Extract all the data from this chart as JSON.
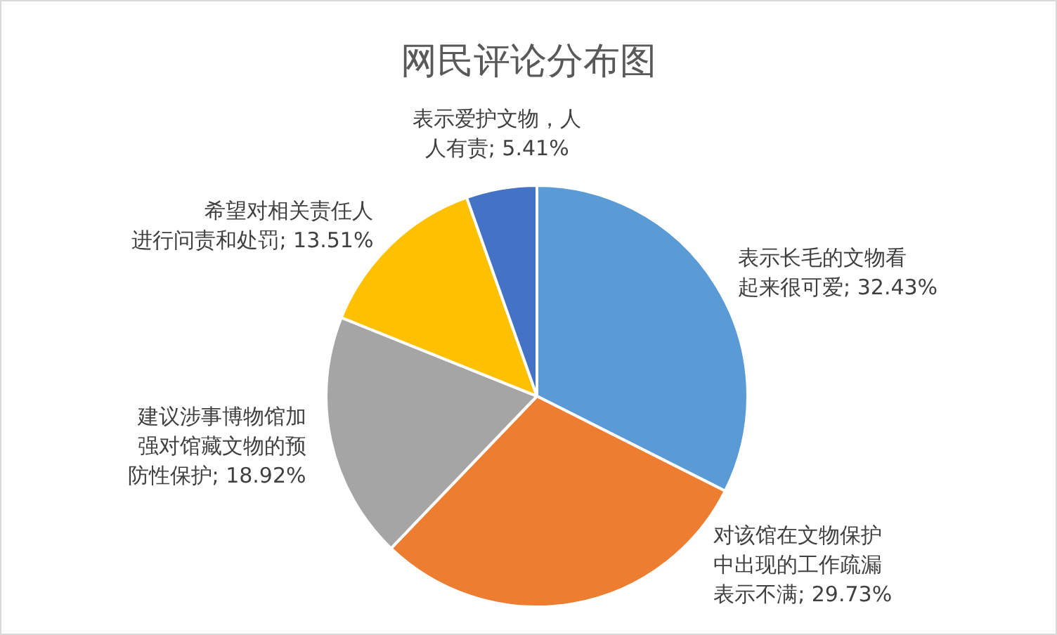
{
  "chart_data": {
    "type": "pie",
    "title": "网民评论分布图",
    "categories": [
      "表示长毛的文物看起来很可爱",
      "对该馆在文物保护中出现的工作疏漏表示不满",
      "建议涉事博物馆加强对馆藏文物的预防性保护",
      "希望对相关责任人进行问责和处罚",
      "表示爱护文物，人人有责"
    ],
    "values": [
      32.43,
      29.73,
      18.92,
      13.51,
      5.41
    ],
    "colors": [
      "#5b9bd5",
      "#ed7d31",
      "#a5a5a5",
      "#ffc000",
      "#4472c4"
    ],
    "value_labels": [
      "32.43%",
      "29.73%",
      "18.92%",
      "13.51%",
      "5.41%"
    ]
  }
}
